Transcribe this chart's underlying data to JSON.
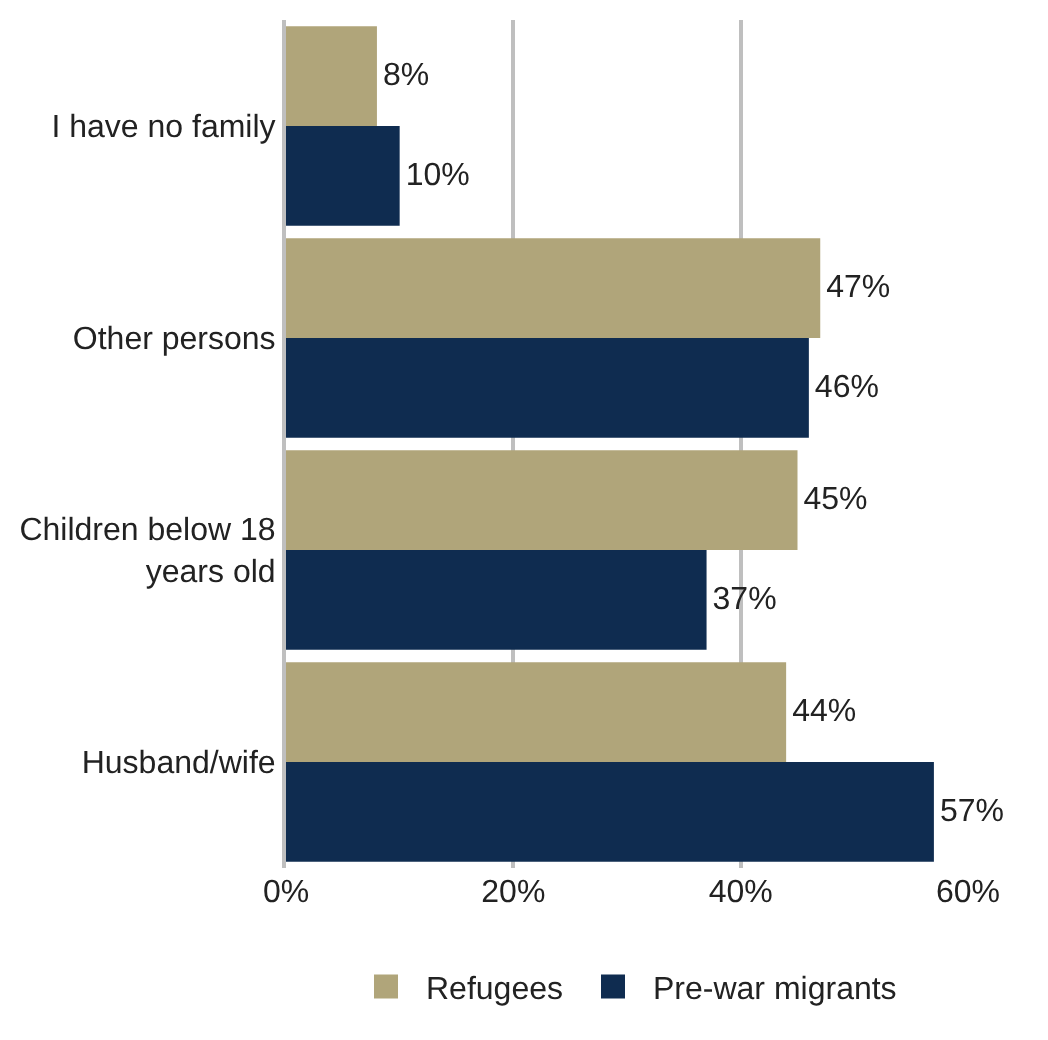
{
  "chart_data": {
    "type": "bar",
    "orientation": "horizontal",
    "categories": [
      "I have no family",
      "Other persons",
      "Children below 18 years old",
      "Husband/wife"
    ],
    "series": [
      {
        "name": "Refugees",
        "color": "#b0a57a",
        "values": [
          8,
          47,
          45,
          44
        ],
        "value_labels": [
          "8%",
          "47%",
          "45%",
          "44%"
        ]
      },
      {
        "name": "Pre-war migrants",
        "color": "#0f2c50",
        "values": [
          10,
          46,
          37,
          57
        ],
        "value_labels": [
          "10%",
          "46%",
          "37%",
          "57%"
        ]
      }
    ],
    "xlim": [
      0,
      60
    ],
    "xticks": [
      {
        "value": 0,
        "label": "0%"
      },
      {
        "value": 20,
        "label": "20%"
      },
      {
        "value": 40,
        "label": "40%"
      },
      {
        "value": 60,
        "label": "60%"
      }
    ],
    "grid": "x",
    "legend": "bottom"
  }
}
